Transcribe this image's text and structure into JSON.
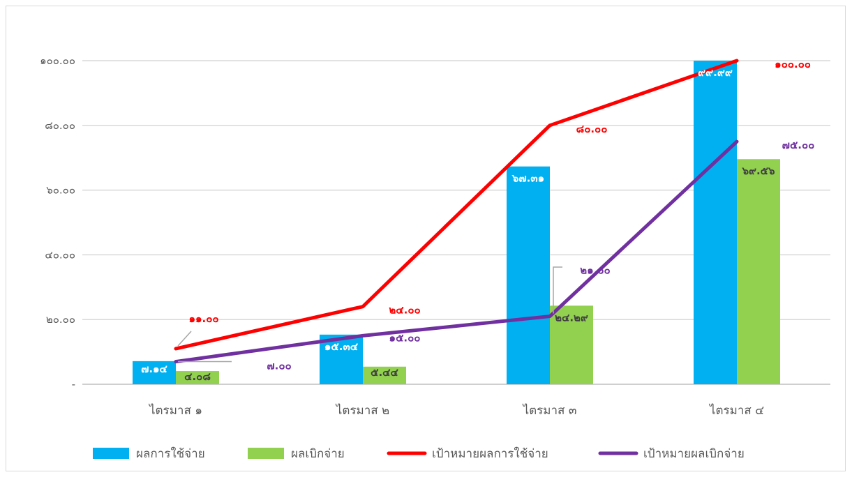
{
  "chart_data": {
    "type": "bar",
    "categories": [
      "ไตรมาส ๑",
      "ไตรมาส ๒",
      "ไตรมาส ๓",
      "ไตรมาส ๔"
    ],
    "ylim": [
      0,
      100
    ],
    "yticks": [
      {
        "value": 0,
        "label": "-"
      },
      {
        "value": 20,
        "label": "๒๐.๐๐"
      },
      {
        "value": 40,
        "label": "๔๐.๐๐"
      },
      {
        "value": 60,
        "label": "๖๐.๐๐"
      },
      {
        "value": 80,
        "label": "๘๐.๐๐"
      },
      {
        "value": 100,
        "label": "๑๐๐.๐๐"
      }
    ],
    "grid": true,
    "legend_position": "bottom",
    "bar_series": [
      {
        "name": "ผลการใช้จ่าย",
        "color": "#00b0f0",
        "values": [
          7.14,
          15.34,
          67.31,
          99.99
        ],
        "labels": [
          "๗.๑๔",
          "๑๕.๓๔",
          "๖๗.๓๑",
          "๙๙.๙๙"
        ],
        "label_color": "#ffffff"
      },
      {
        "name": "ผลเบิกจ่าย",
        "color": "#92d050",
        "values": [
          4.08,
          5.44,
          24.29,
          69.56
        ],
        "labels": [
          "๔.๐๘",
          "๕.๔๔",
          "๒๔.๒๙",
          "๖๙.๕๖"
        ],
        "label_color": "#404040"
      }
    ],
    "line_series": [
      {
        "name": "เป้าหมายผลการใช้จ่าย",
        "color": "#ff0000",
        "values": [
          11.0,
          24.0,
          80.0,
          100.0
        ],
        "labels": [
          "๑๑.๐๐",
          "๒๔.๐๐",
          "๘๐.๐๐",
          "๑๐๐.๐๐"
        ],
        "label_color": "#ff0000"
      },
      {
        "name": "เป้าหมายผลเบิกจ่าย",
        "color": "#7030a0",
        "values": [
          7.0,
          15.0,
          21.0,
          75.0
        ],
        "labels": [
          "๗.๐๐",
          "๑๕.๐๐",
          "๒๑.๐๐",
          "๗๕.๐๐"
        ],
        "label_color": "#7030a0"
      }
    ]
  }
}
